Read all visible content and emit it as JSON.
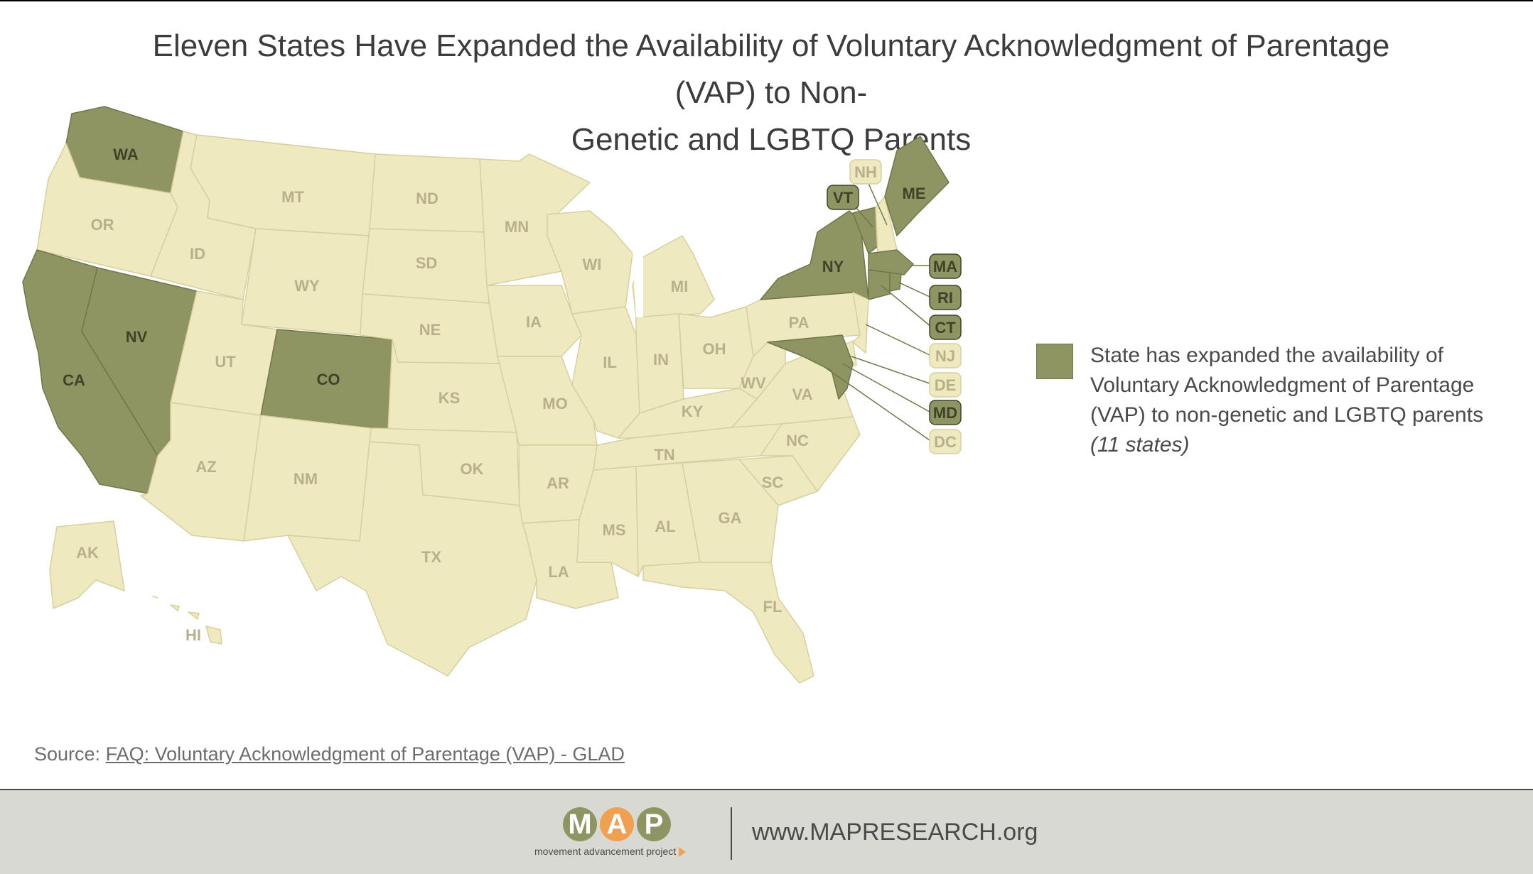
{
  "title": "Eleven States Have Expanded the Availability of Voluntary Acknowledgment of Parentage (VAP) to Non-Genetic and LGBTQ Parents",
  "title_lines": [
    "Eleven States Have Expanded the Availability of Voluntary Acknowledgment of Parentage (VAP) to Non-",
    "Genetic and LGBTQ Parents"
  ],
  "colors": {
    "expanded_fill": "#8e9563",
    "expanded_border": "#6f764a",
    "not_expanded_fill": "#efe9bf",
    "not_expanded_border": "#d6cf9f",
    "label_on_expanded": "#3f4328",
    "label_on_not_expanded": "#b8b08a"
  },
  "legend": {
    "label": "State has expanded the availability of Voluntary Acknowledgment of Parentage (VAP) to non-genetic and LGBTQ parents",
    "lines": [
      "State has expanded the availability of",
      "Voluntary Acknowledgment of Parentage",
      "(VAP) to non-genetic and LGBTQ parents"
    ],
    "count": "(11 states)"
  },
  "states": {
    "AL": {
      "label": "AL",
      "expanded": false
    },
    "AK": {
      "label": "AK",
      "expanded": false
    },
    "AZ": {
      "label": "AZ",
      "expanded": false
    },
    "AR": {
      "label": "AR",
      "expanded": false
    },
    "CA": {
      "label": "CA",
      "expanded": true
    },
    "CO": {
      "label": "CO",
      "expanded": true
    },
    "CT": {
      "label": "CT",
      "expanded": true
    },
    "DE": {
      "label": "DE",
      "expanded": false
    },
    "DC": {
      "label": "DC",
      "expanded": false
    },
    "FL": {
      "label": "FL",
      "expanded": false
    },
    "GA": {
      "label": "GA",
      "expanded": false
    },
    "HI": {
      "label": "HI",
      "expanded": false
    },
    "ID": {
      "label": "ID",
      "expanded": false
    },
    "IL": {
      "label": "IL",
      "expanded": false
    },
    "IN": {
      "label": "IN",
      "expanded": false
    },
    "IA": {
      "label": "IA",
      "expanded": false
    },
    "KS": {
      "label": "KS",
      "expanded": false
    },
    "KY": {
      "label": "KY",
      "expanded": false
    },
    "LA": {
      "label": "LA",
      "expanded": false
    },
    "ME": {
      "label": "ME",
      "expanded": true
    },
    "MD": {
      "label": "MD",
      "expanded": true
    },
    "MA": {
      "label": "MA",
      "expanded": true
    },
    "MI": {
      "label": "MI",
      "expanded": false
    },
    "MN": {
      "label": "MN",
      "expanded": false
    },
    "MS": {
      "label": "MS",
      "expanded": false
    },
    "MO": {
      "label": "MO",
      "expanded": false
    },
    "MT": {
      "label": "MT",
      "expanded": false
    },
    "NE": {
      "label": "NE",
      "expanded": false
    },
    "NV": {
      "label": "NV",
      "expanded": true
    },
    "NH": {
      "label": "NH",
      "expanded": false
    },
    "NJ": {
      "label": "NJ",
      "expanded": false
    },
    "NM": {
      "label": "NM",
      "expanded": false
    },
    "NY": {
      "label": "NY",
      "expanded": true
    },
    "NC": {
      "label": "NC",
      "expanded": false
    },
    "ND": {
      "label": "ND",
      "expanded": false
    },
    "OH": {
      "label": "OH",
      "expanded": false
    },
    "OK": {
      "label": "OK",
      "expanded": false
    },
    "OR": {
      "label": "OR",
      "expanded": false
    },
    "PA": {
      "label": "PA",
      "expanded": false
    },
    "RI": {
      "label": "RI",
      "expanded": true
    },
    "SC": {
      "label": "SC",
      "expanded": false
    },
    "SD": {
      "label": "SD",
      "expanded": false
    },
    "TN": {
      "label": "TN",
      "expanded": false
    },
    "TX": {
      "label": "TX",
      "expanded": false
    },
    "UT": {
      "label": "UT",
      "expanded": false
    },
    "VT": {
      "label": "VT",
      "expanded": true
    },
    "VA": {
      "label": "VA",
      "expanded": false
    },
    "WA": {
      "label": "WA",
      "expanded": true
    },
    "WV": {
      "label": "WV",
      "expanded": false
    },
    "WI": {
      "label": "WI",
      "expanded": false
    },
    "WY": {
      "label": "WY",
      "expanded": false
    }
  },
  "source": {
    "prefix": "Source: ",
    "link_text": "FAQ: Voluntary Acknowledgment of Parentage (VAP) - GLAD"
  },
  "footer": {
    "logo_letters": [
      "M",
      "A",
      "P"
    ],
    "logo_tagline": "movement advancement project",
    "url": "www.MAPRESEARCH.org"
  }
}
